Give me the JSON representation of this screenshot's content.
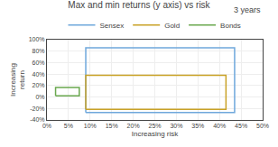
{
  "chart_data": {
    "type": "rectangles",
    "title": "Max and min returns (y axis) vs risk",
    "xlabel": "Increasing risk",
    "ylabel": "Increasing\nreturn",
    "annotations": [
      "3 years"
    ],
    "series": [
      {
        "name": "Sensex",
        "color": "#6fa8dc",
        "x": 0.09,
        "y": -0.27,
        "width": 0.345,
        "height": 1.13
      },
      {
        "name": "Gold",
        "color": "#c9a227",
        "x": 0.09,
        "y": -0.215,
        "width": 0.325,
        "height": 0.595
      },
      {
        "name": "Bonds",
        "color": "#6aa84f",
        "x": 0.02,
        "y": 0.02,
        "width": 0.055,
        "height": 0.145
      }
    ],
    "xlim": [
      0,
      0.5
    ],
    "ylim": [
      -0.4,
      1.0
    ],
    "xticks": [
      {
        "value": 0.0,
        "label": "0%"
      },
      {
        "value": 0.05,
        "label": "5%"
      },
      {
        "value": 0.1,
        "label": "10%"
      },
      {
        "value": 0.15,
        "label": "15%"
      },
      {
        "value": 0.2,
        "label": "20%"
      },
      {
        "value": 0.25,
        "label": "25%"
      },
      {
        "value": 0.3,
        "label": "30%"
      },
      {
        "value": 0.35,
        "label": "35%"
      },
      {
        "value": 0.4,
        "label": "40%"
      },
      {
        "value": 0.45,
        "label": "45%"
      },
      {
        "value": 0.5,
        "label": "50%"
      }
    ],
    "yticks": [
      {
        "value": -0.4,
        "label": "-40%"
      },
      {
        "value": -0.2,
        "label": "-20%"
      },
      {
        "value": 0.0,
        "label": "0%"
      },
      {
        "value": 0.2,
        "label": "20%"
      },
      {
        "value": 0.4,
        "label": "40%"
      },
      {
        "value": 0.6,
        "label": "60%"
      },
      {
        "value": 0.8,
        "label": "80%"
      },
      {
        "value": 1.0,
        "label": "100%"
      }
    ],
    "grid": true,
    "legend": "top"
  }
}
